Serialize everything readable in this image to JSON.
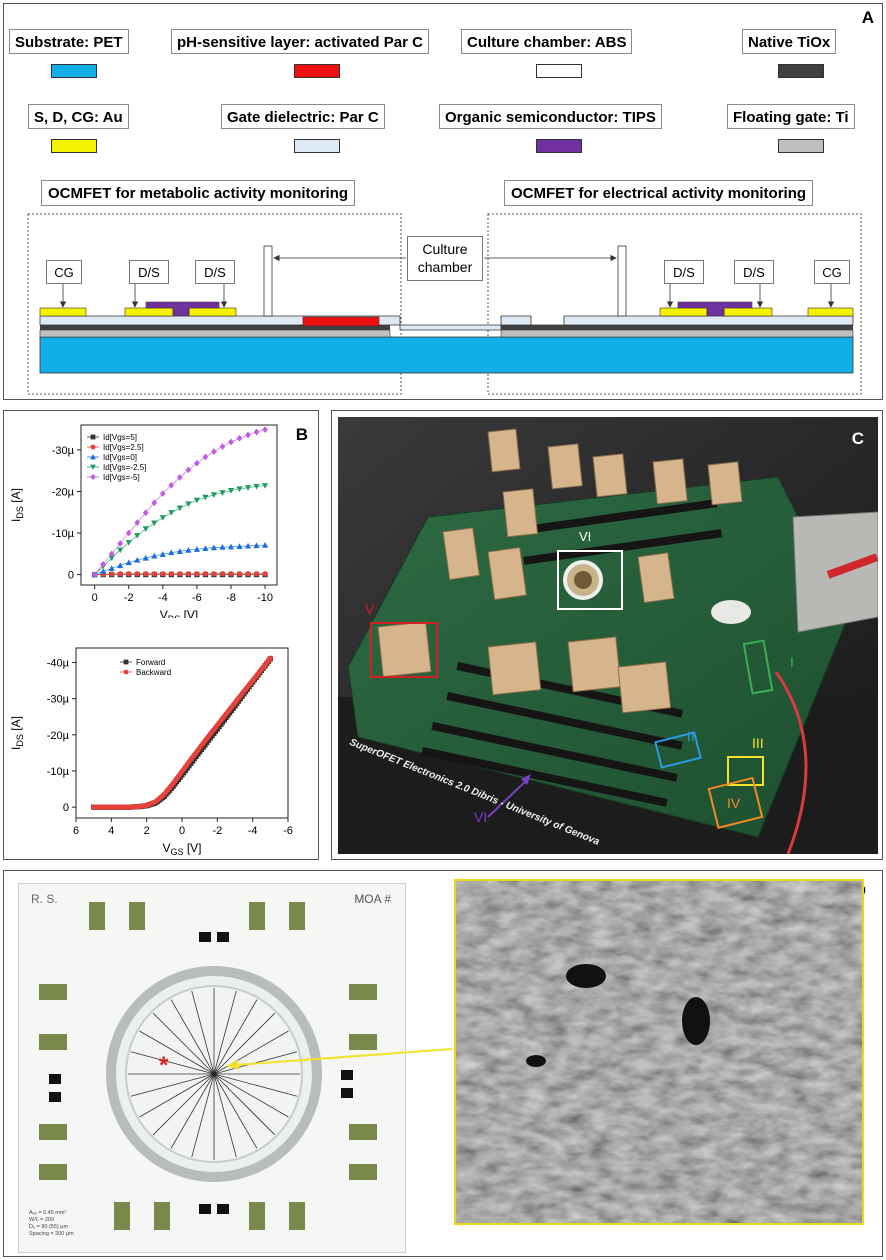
{
  "panel_a": {
    "letter": "A",
    "legend": [
      {
        "label": "Substrate: PET",
        "color": "#12aee8"
      },
      {
        "label": "pH-sensitive layer: activated Par C",
        "color": "#ee1111"
      },
      {
        "label": "Culture chamber: ABS",
        "color": "#ffffff"
      },
      {
        "label": "Native TiOx",
        "color": "#404040"
      },
      {
        "label": "S, D, CG: Au",
        "color": "#f5f100"
      },
      {
        "label": "Gate dielectric: Par C",
        "color": "#dde9f5"
      },
      {
        "label": "Organic semiconductor: TIPS",
        "color": "#7030a0"
      },
      {
        "label": "Floating gate: Ti",
        "color": "#bfbfbf"
      }
    ],
    "left_title": "OCMFET for metabolic activity monitoring",
    "right_title": "OCMFET for electrical activity monitoring",
    "chamber_label_line1": "Culture",
    "chamber_label_line2": "chamber",
    "left_labels": [
      "CG",
      "D/S",
      "D/S"
    ],
    "right_labels": [
      "D/S",
      "D/S",
      "CG"
    ]
  },
  "panel_b": {
    "letter": "B",
    "chart_data": [
      {
        "type": "scatter",
        "x": [
          0,
          -0.5,
          -1,
          -1.5,
          -2,
          -2.5,
          -3,
          -3.5,
          -4,
          -4.5,
          -5,
          -5.5,
          -6,
          -6.5,
          -7,
          -7.5,
          -8,
          -8.5,
          -9,
          -9.5,
          -10
        ],
        "series": [
          {
            "name": "Id[Vgs=5]",
            "color": "#333333",
            "marker": "square",
            "values": [
              0,
              0,
              0,
              0,
              0,
              0,
              0,
              0,
              0,
              0,
              0,
              0,
              0,
              0,
              0,
              0,
              0,
              0,
              0,
              0,
              0
            ]
          },
          {
            "name": "Id[Vgs=2.5]",
            "color": "#e8403a",
            "marker": "circle",
            "values": [
              0,
              -0.1,
              -0.15,
              -0.2,
              -0.2,
              -0.2,
              -0.2,
              -0.2,
              -0.2,
              -0.2,
              -0.2,
              -0.2,
              -0.2,
              -0.2,
              -0.2,
              -0.2,
              -0.2,
              -0.2,
              -0.2,
              -0.2,
              -0.2
            ]
          },
          {
            "name": "Id[Vgs=0]",
            "color": "#1a6fdc",
            "marker": "triangle-up",
            "values": [
              0,
              -0.8,
              -1.5,
              -2.2,
              -2.9,
              -3.5,
              -4,
              -4.5,
              -4.9,
              -5.3,
              -5.6,
              -5.9,
              -6.1,
              -6.3,
              -6.5,
              -6.6,
              -6.7,
              -6.8,
              -6.9,
              -7,
              -7.1
            ]
          },
          {
            "name": "Id[Vgs=-2.5]",
            "color": "#1f9e63",
            "marker": "triangle-down",
            "values": [
              0,
              -2,
              -4,
              -5.9,
              -7.7,
              -9.4,
              -11,
              -12.4,
              -13.7,
              -14.9,
              -16,
              -17,
              -17.9,
              -18.6,
              -19.2,
              -19.7,
              -20.2,
              -20.6,
              -20.9,
              -21.2,
              -21.4
            ]
          },
          {
            "name": "Id[Vgs=-5]",
            "color": "#c05de0",
            "marker": "diamond",
            "values": [
              0,
              -2.5,
              -5,
              -7.5,
              -10,
              -12.5,
              -14.9,
              -17.3,
              -19.5,
              -21.5,
              -23.4,
              -25.2,
              -26.8,
              -28.3,
              -29.6,
              -30.8,
              -31.9,
              -32.8,
              -33.6,
              -34.3,
              -34.9
            ]
          }
        ],
        "xlabel": "V",
        "xlabel_sub": "DS",
        "xlabel_unit": " [V]",
        "ylabel": "I",
        "ylabel_sub": "DS",
        "ylabel_unit": " [A]",
        "xlim": [
          0.8,
          -10.7
        ],
        "ylim": [
          2.5,
          -36
        ],
        "xticks": [
          0,
          -2,
          -4,
          -6,
          -8,
          -10
        ],
        "yticks": [
          0,
          -10,
          -20,
          -30
        ],
        "ytick_labels": [
          "0",
          "-10µ",
          "-20µ",
          "-30µ"
        ],
        "legend_position": "top-left"
      },
      {
        "type": "scatter",
        "x": [
          5,
          4.5,
          4,
          3.5,
          3,
          2.5,
          2,
          1.5,
          1,
          0.5,
          0,
          -0.5,
          -1,
          -1.5,
          -2,
          -2.5,
          -3,
          -3.5,
          -4,
          -4.5,
          -5
        ],
        "series": [
          {
            "name": "Forward",
            "color": "#333333",
            "marker": "square",
            "values": [
              0,
              0,
              0,
              0,
              0,
              -0.1,
              -0.4,
              -1.2,
              -3,
              -5.8,
              -8.9,
              -12.1,
              -15.3,
              -18.5,
              -21.6,
              -24.8,
              -28,
              -31.3,
              -34.6,
              -37.8,
              -41
            ]
          },
          {
            "name": "Backward",
            "color": "#e8403a",
            "marker": "circle",
            "values": [
              0,
              0,
              0,
              0,
              0,
              -0.1,
              -0.5,
              -1.5,
              -3.6,
              -6.6,
              -9.9,
              -13.2,
              -16.4,
              -19.6,
              -22.7,
              -25.8,
              -28.9,
              -32,
              -35,
              -38.1,
              -41.2
            ]
          }
        ],
        "xlabel": "V",
        "xlabel_sub": "GS",
        "xlabel_unit": " [V]",
        "ylabel": "I",
        "ylabel_sub": "DS",
        "ylabel_unit": " [A]",
        "xlim": [
          6,
          -6
        ],
        "ylim": [
          3,
          -44
        ],
        "xticks": [
          6,
          4,
          2,
          0,
          -2,
          -4,
          -6
        ],
        "yticks": [
          0,
          -10,
          -20,
          -30,
          -40
        ],
        "ytick_labels": [
          "0",
          "-10µ",
          "-20µ",
          "-30µ",
          "-40µ"
        ],
        "legend_position": "top-left"
      }
    ]
  },
  "panel_c": {
    "letter": "C",
    "board_text": "SuperOFET Electronics 2.0  Dibris - University of Genova",
    "marks": {
      "vi_top": "VI",
      "v": "V",
      "i": "I",
      "ii": "II",
      "iii": "III",
      "iv": "IV",
      "vi_bottom": "VI"
    },
    "colors": {
      "v": "#d42020",
      "i": "#3cb054",
      "ii": "#2a9be0",
      "iii": "#f2e22a",
      "iv": "#f08a24",
      "vi": "#7a3fc0",
      "vi_top": "#ffffff"
    }
  },
  "panel_d": {
    "letter": "D",
    "chip_id": "R. S.",
    "chip_label": "MOA #",
    "asterisk": "*",
    "specs": [
      "Aₑₒ = 0.45 mm²",
      "W/L = 200",
      "Dₒ = 90 (55) µm",
      "Spacing = 200 µm"
    ]
  }
}
